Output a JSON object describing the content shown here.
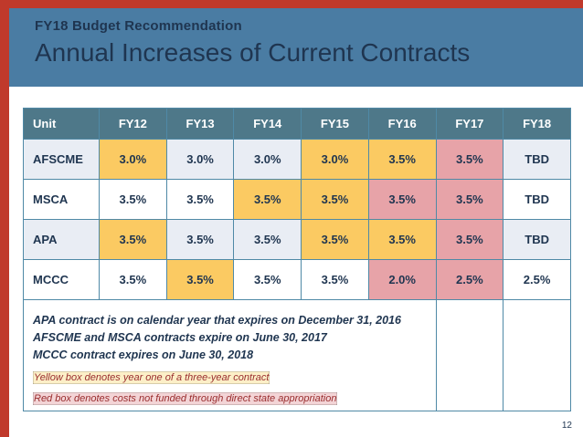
{
  "slide": {
    "subtitle": "FY18 Budget Recommendation",
    "title": "Annual Increases of Current Contracts",
    "page_number": "12"
  },
  "colors": {
    "frame_red": "#C0392B",
    "band_blue": "#4A7CA3",
    "navy": "#1F3550",
    "header_bg": "#4E7889",
    "grid": "#4F89A6",
    "row_alt": "#E9EDF4",
    "yellow": "#FBCA62",
    "pink": "#E7A3A8",
    "legend_yellow_bg": "#FCEFC7",
    "legend_pink_bg": "#F3D4D6",
    "legend_text": "#992D2E"
  },
  "table": {
    "columns": [
      "Unit",
      "FY12",
      "FY13",
      "FY14",
      "FY15",
      "FY16",
      "FY17",
      "FY18"
    ],
    "rows": [
      {
        "unit": "AFSCME",
        "values": [
          "3.0%",
          "3.0%",
          "3.0%",
          "3.0%",
          "3.5%",
          "3.5%",
          "TBD"
        ],
        "highlights": [
          "yellow",
          "none",
          "none",
          "yellow",
          "yellow",
          "pink",
          "none"
        ]
      },
      {
        "unit": "MSCA",
        "values": [
          "3.5%",
          "3.5%",
          "3.5%",
          "3.5%",
          "3.5%",
          "3.5%",
          "TBD"
        ],
        "highlights": [
          "none",
          "none",
          "yellow",
          "yellow",
          "pink",
          "pink",
          "none"
        ]
      },
      {
        "unit": "APA",
        "values": [
          "3.5%",
          "3.5%",
          "3.5%",
          "3.5%",
          "3.5%",
          "3.5%",
          "TBD"
        ],
        "highlights": [
          "yellow",
          "none",
          "none",
          "yellow",
          "yellow",
          "pink",
          "none"
        ]
      },
      {
        "unit": "MCCC",
        "values": [
          "3.5%",
          "3.5%",
          "3.5%",
          "3.5%",
          "2.0%",
          "2.5%",
          "2.5%"
        ],
        "highlights": [
          "none",
          "yellow",
          "none",
          "none",
          "pink",
          "pink",
          "none"
        ]
      }
    ],
    "footnotes": [
      "APA contract is on calendar year that expires on December 31, 2016",
      "AFSCME and MSCA contracts expire on June 30, 2017",
      "MCCC contract expires on June 30, 2018"
    ],
    "legend": [
      {
        "type": "yellow",
        "label": "Yellow box denotes year one of a three-year contract"
      },
      {
        "type": "pink",
        "label": "Red box denotes costs not funded through direct state appropriation"
      }
    ]
  },
  "chart_data": {
    "type": "table",
    "title": "Annual Increases of Current Contracts",
    "columns": [
      "Unit",
      "FY12",
      "FY13",
      "FY14",
      "FY15",
      "FY16",
      "FY17",
      "FY18"
    ],
    "rows": [
      [
        "AFSCME",
        "3.0%",
        "3.0%",
        "3.0%",
        "3.0%",
        "3.5%",
        "3.5%",
        "TBD"
      ],
      [
        "MSCA",
        "3.5%",
        "3.5%",
        "3.5%",
        "3.5%",
        "3.5%",
        "3.5%",
        "TBD"
      ],
      [
        "APA",
        "3.5%",
        "3.5%",
        "3.5%",
        "3.5%",
        "3.5%",
        "3.5%",
        "TBD"
      ],
      [
        "MCCC",
        "3.5%",
        "3.5%",
        "3.5%",
        "3.5%",
        "2.0%",
        "2.5%",
        "2.5%"
      ]
    ]
  }
}
